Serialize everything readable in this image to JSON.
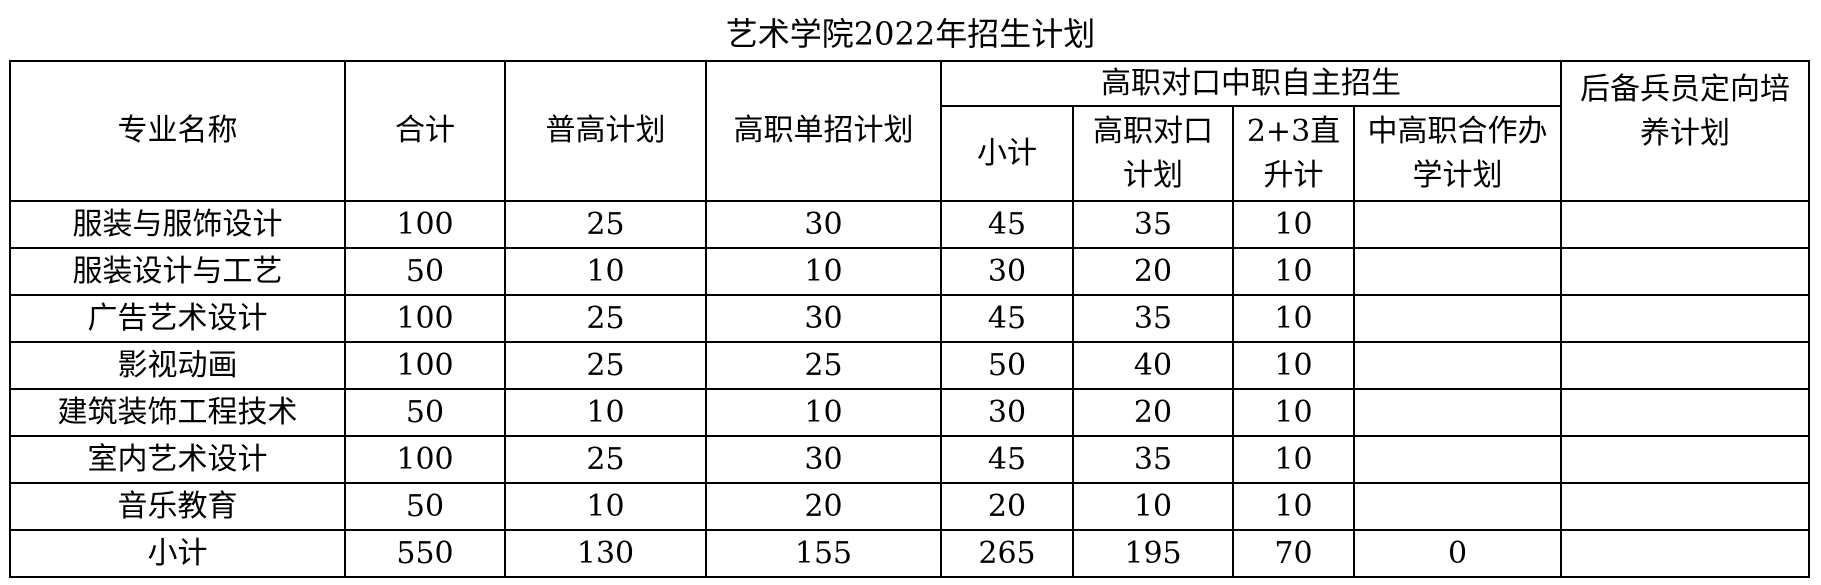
{
  "title": "艺术学院2022年招生计划",
  "headers": {
    "major": "专业名称",
    "total": "合计",
    "general": "普高计划",
    "single": "高职单招计划",
    "group": "高职对口中职自主招生",
    "sub": [
      "小计",
      "高职对口计划",
      "2+3直升计",
      "中高职合作办学计划"
    ],
    "reserve": "后备兵员定向培养计划"
  },
  "rows": [
    [
      "服装与服饰设计",
      "100",
      "25",
      "30",
      "45",
      "35",
      "10",
      "",
      ""
    ],
    [
      "服装设计与工艺",
      "50",
      "10",
      "10",
      "30",
      "20",
      "10",
      "",
      ""
    ],
    [
      "广告艺术设计",
      "100",
      "25",
      "30",
      "45",
      "35",
      "10",
      "",
      ""
    ],
    [
      "影视动画",
      "100",
      "25",
      "25",
      "50",
      "40",
      "10",
      "",
      ""
    ],
    [
      "建筑装饰工程技术",
      "50",
      "10",
      "10",
      "30",
      "20",
      "10",
      "",
      ""
    ],
    [
      "室内艺术设计",
      "100",
      "25",
      "30",
      "45",
      "35",
      "10",
      "",
      ""
    ],
    [
      "音乐教育",
      "50",
      "10",
      "20",
      "20",
      "10",
      "10",
      "",
      ""
    ],
    [
      "小计",
      "550",
      "130",
      "155",
      "265",
      "195",
      "70",
      "0",
      ""
    ]
  ]
}
